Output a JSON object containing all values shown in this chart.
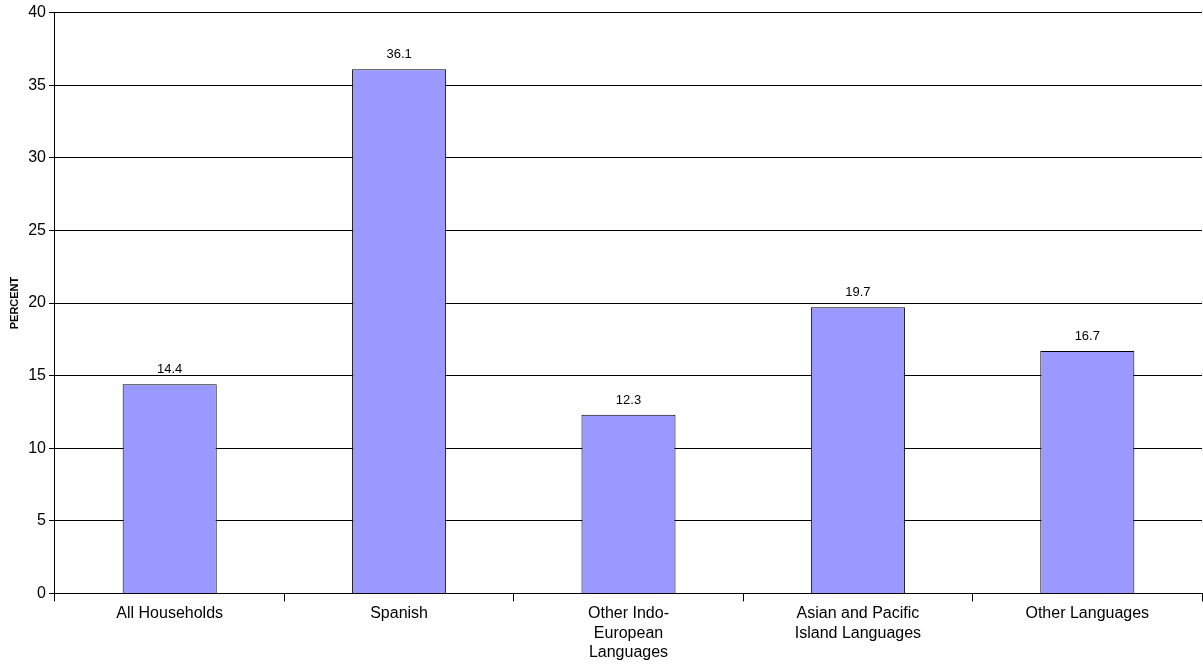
{
  "chart_data": {
    "type": "bar",
    "ylabel": "PERCENT",
    "categories": [
      "All Households",
      "Spanish",
      "Other Indo-European Languages",
      "Asian and Pacific Island Languages",
      "Other Languages"
    ],
    "values": [
      14.4,
      36.1,
      12.3,
      19.7,
      16.7
    ],
    "color": "#9999ff",
    "ylim": [
      0,
      40
    ],
    "yticks": [
      0,
      5,
      10,
      15,
      20,
      25,
      30,
      35,
      40
    ],
    "grid": "y",
    "data_labels": true,
    "legend": false
  }
}
